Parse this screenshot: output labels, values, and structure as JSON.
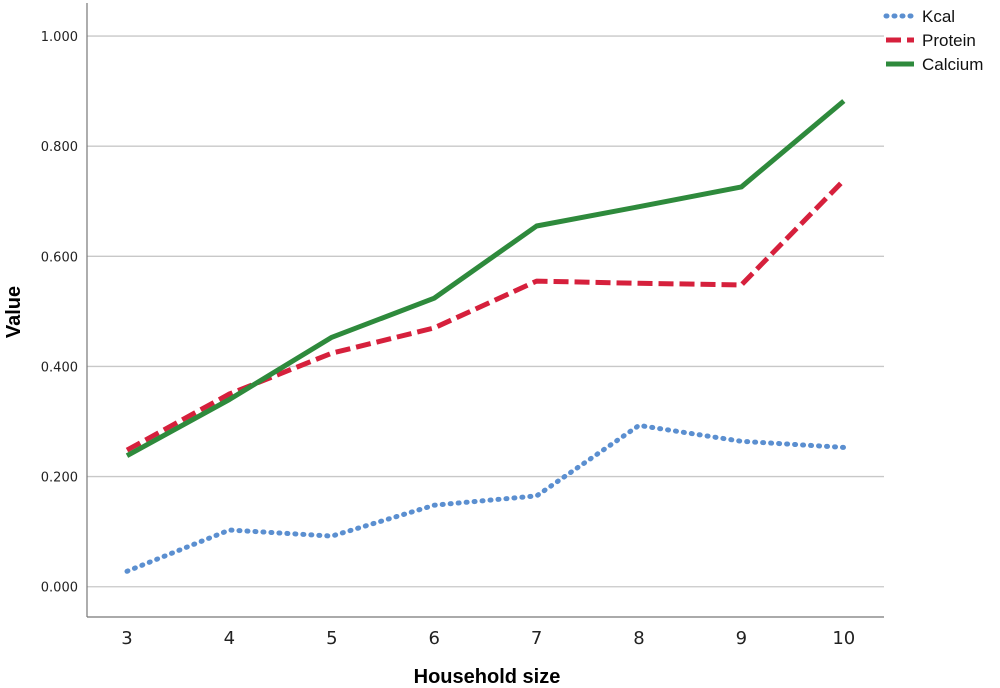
{
  "chart_data": {
    "type": "line",
    "title": "",
    "xlabel": "Household size",
    "ylabel": "Value",
    "categories": [
      "3",
      "4",
      "5",
      "6",
      "7",
      "8",
      "9",
      "10"
    ],
    "yticks": [
      "0.000",
      "0.200",
      "0.400",
      "0.600",
      "0.800",
      "1.000"
    ],
    "ylim": [
      -0.055,
      1.06
    ],
    "grid": true,
    "legend_position": "top-right",
    "series": [
      {
        "name": "Kcal",
        "color": "#5b8fd0",
        "style": "dotted",
        "values": [
          0.028,
          0.103,
          0.092,
          0.148,
          0.165,
          0.293,
          0.264,
          0.253
        ]
      },
      {
        "name": "Protein",
        "color": "#d6203c",
        "style": "dashed",
        "values": [
          0.248,
          0.35,
          0.424,
          0.47,
          0.555,
          0.551,
          0.548,
          0.738
        ]
      },
      {
        "name": "Calcium",
        "color": "#2e8a3c",
        "style": "solid",
        "values": [
          0.238,
          0.34,
          0.453,
          0.524,
          0.655,
          0.69,
          0.726,
          0.882
        ]
      }
    ]
  }
}
